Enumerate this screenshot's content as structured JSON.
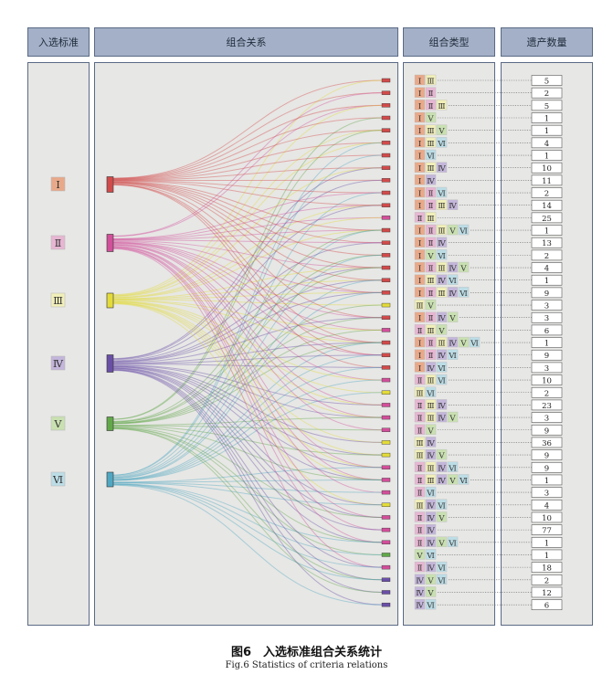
{
  "headers": {
    "criteria": "入选标准",
    "relations": "组合关系",
    "types": "组合类型",
    "counts": "遗产数量"
  },
  "criteria_labels": [
    "Ⅰ",
    "Ⅱ",
    "Ⅲ",
    "Ⅳ",
    "Ⅴ",
    "Ⅵ"
  ],
  "colors": {
    "Ⅰ": "#d14b4b",
    "Ⅱ": "#d24f9a",
    "Ⅲ": "#e3db39",
    "Ⅳ": "#6a4fa6",
    "Ⅴ": "#62a84a",
    "Ⅵ": "#4fa7c2"
  },
  "label_fills": {
    "Ⅰ": "#e8a98a",
    "Ⅱ": "#e6b6d2",
    "Ⅲ": "#f1efb9",
    "Ⅳ": "#c3b6da",
    "Ⅴ": "#c9e0b1",
    "Ⅵ": "#bcdde6"
  },
  "combinations": [
    {
      "type": [
        "Ⅰ",
        "Ⅲ"
      ],
      "count": "5"
    },
    {
      "type": [
        "Ⅰ",
        "Ⅱ"
      ],
      "count": "2"
    },
    {
      "type": [
        "Ⅰ",
        "Ⅱ",
        "Ⅲ"
      ],
      "count": "5"
    },
    {
      "type": [
        "Ⅰ",
        "Ⅴ"
      ],
      "count": "1"
    },
    {
      "type": [
        "Ⅰ",
        "Ⅲ",
        "Ⅴ"
      ],
      "count": "1"
    },
    {
      "type": [
        "Ⅰ",
        "Ⅲ",
        "Ⅵ"
      ],
      "count": "4"
    },
    {
      "type": [
        "Ⅰ",
        "Ⅵ"
      ],
      "count": "1"
    },
    {
      "type": [
        "Ⅰ",
        "Ⅲ",
        "Ⅳ"
      ],
      "count": "10"
    },
    {
      "type": [
        "Ⅰ",
        "Ⅳ"
      ],
      "count": "11"
    },
    {
      "type": [
        "Ⅰ",
        "Ⅱ",
        "Ⅵ"
      ],
      "count": "2"
    },
    {
      "type": [
        "Ⅰ",
        "Ⅱ",
        "Ⅲ",
        "Ⅳ"
      ],
      "count": "14"
    },
    {
      "type": [
        "Ⅱ",
        "Ⅲ"
      ],
      "count": "25"
    },
    {
      "type": [
        "Ⅰ",
        "Ⅱ",
        "Ⅲ",
        "Ⅴ",
        "Ⅵ"
      ],
      "count": "1"
    },
    {
      "type": [
        "Ⅰ",
        "Ⅱ",
        "Ⅳ"
      ],
      "count": "13"
    },
    {
      "type": [
        "Ⅰ",
        "Ⅴ",
        "Ⅵ"
      ],
      "count": "2"
    },
    {
      "type": [
        "Ⅰ",
        "Ⅱ",
        "Ⅲ",
        "Ⅳ",
        "Ⅴ"
      ],
      "count": "4"
    },
    {
      "type": [
        "Ⅰ",
        "Ⅲ",
        "Ⅳ",
        "Ⅵ"
      ],
      "count": "1"
    },
    {
      "type": [
        "Ⅰ",
        "Ⅱ",
        "Ⅲ",
        "Ⅳ",
        "Ⅵ"
      ],
      "count": "9"
    },
    {
      "type": [
        "Ⅲ",
        "Ⅴ"
      ],
      "count": "3"
    },
    {
      "type": [
        "Ⅰ",
        "Ⅱ",
        "Ⅳ",
        "Ⅴ"
      ],
      "count": "3"
    },
    {
      "type": [
        "Ⅱ",
        "Ⅲ",
        "Ⅴ"
      ],
      "count": "6"
    },
    {
      "type": [
        "Ⅰ",
        "Ⅱ",
        "Ⅲ",
        "Ⅳ",
        "Ⅴ",
        "Ⅵ"
      ],
      "count": "1"
    },
    {
      "type": [
        "Ⅰ",
        "Ⅱ",
        "Ⅳ",
        "Ⅵ"
      ],
      "count": "9"
    },
    {
      "type": [
        "Ⅰ",
        "Ⅳ",
        "Ⅵ"
      ],
      "count": "3"
    },
    {
      "type": [
        "Ⅱ",
        "Ⅲ",
        "Ⅵ"
      ],
      "count": "10"
    },
    {
      "type": [
        "Ⅲ",
        "Ⅵ"
      ],
      "count": "2"
    },
    {
      "type": [
        "Ⅱ",
        "Ⅲ",
        "Ⅳ"
      ],
      "count": "23"
    },
    {
      "type": [
        "Ⅱ",
        "Ⅲ",
        "Ⅳ",
        "Ⅴ"
      ],
      "count": "3"
    },
    {
      "type": [
        "Ⅱ",
        "Ⅴ"
      ],
      "count": "9"
    },
    {
      "type": [
        "Ⅲ",
        "Ⅳ"
      ],
      "count": "36"
    },
    {
      "type": [
        "Ⅲ",
        "Ⅳ",
        "Ⅴ"
      ],
      "count": "9"
    },
    {
      "type": [
        "Ⅱ",
        "Ⅲ",
        "Ⅳ",
        "Ⅵ"
      ],
      "count": "9"
    },
    {
      "type": [
        "Ⅱ",
        "Ⅲ",
        "Ⅳ",
        "Ⅴ",
        "Ⅵ"
      ],
      "count": "1"
    },
    {
      "type": [
        "Ⅱ",
        "Ⅵ"
      ],
      "count": "3"
    },
    {
      "type": [
        "Ⅲ",
        "Ⅳ",
        "Ⅵ"
      ],
      "count": "4"
    },
    {
      "type": [
        "Ⅱ",
        "Ⅳ",
        "Ⅴ"
      ],
      "count": "10"
    },
    {
      "type": [
        "Ⅱ",
        "Ⅳ"
      ],
      "count": "77"
    },
    {
      "type": [
        "Ⅱ",
        "Ⅳ",
        "Ⅴ",
        "Ⅵ"
      ],
      "count": "1"
    },
    {
      "type": [
        "Ⅴ",
        "Ⅵ"
      ],
      "count": "1"
    },
    {
      "type": [
        "Ⅱ",
        "Ⅳ",
        "Ⅵ"
      ],
      "count": "18"
    },
    {
      "type": [
        "Ⅳ",
        "Ⅴ",
        "Ⅵ"
      ],
      "count": "2"
    },
    {
      "type": [
        "Ⅳ",
        "Ⅴ"
      ],
      "count": "12"
    },
    {
      "type": [
        "Ⅳ",
        "Ⅵ"
      ],
      "count": "6"
    }
  ],
  "caption": {
    "cn": "图6　入选标准组合关系统计",
    "en": "Fig.6   Statistics of criteria relations"
  }
}
